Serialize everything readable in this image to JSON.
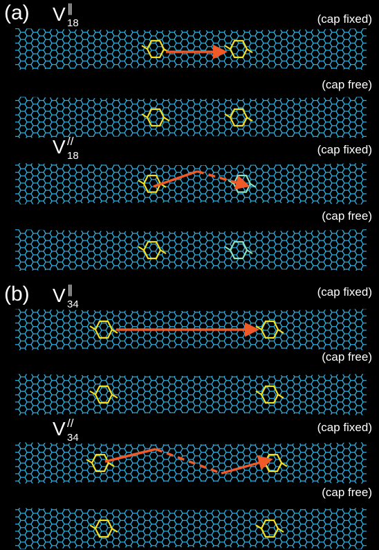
{
  "panels": [
    {
      "label": "(a)",
      "groups": [
        {
          "symbol": {
            "base": "V",
            "sup": "∥",
            "sub": "18"
          },
          "captions": [
            "(cap fixed)",
            "(cap free)"
          ]
        },
        {
          "symbol": {
            "base": "V",
            "sup": "//",
            "sub": "18"
          },
          "captions": [
            "(cap fixed)",
            "(cap free)"
          ]
        }
      ]
    },
    {
      "label": "(b)",
      "groups": [
        {
          "symbol": {
            "base": "V",
            "sup": "∥",
            "sub": "34"
          },
          "captions": [
            "(cap fixed)",
            "(cap free)"
          ]
        },
        {
          "symbol": {
            "base": "V",
            "sup": "//",
            "sub": "34"
          },
          "captions": [
            "(cap fixed)",
            "(cap free)"
          ]
        }
      ]
    }
  ]
}
